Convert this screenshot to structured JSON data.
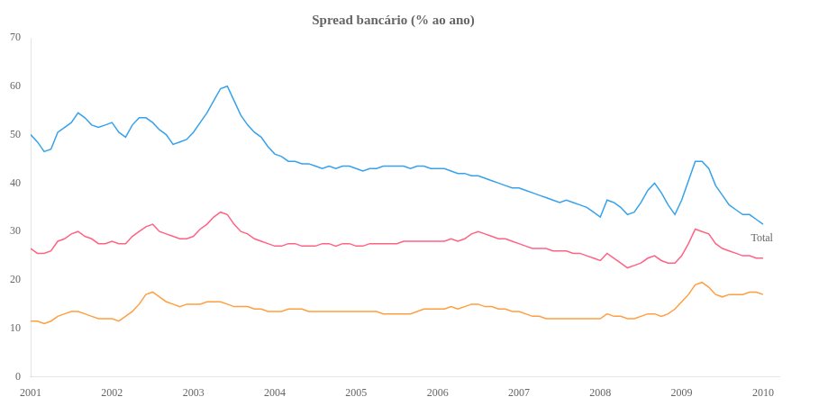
{
  "chart_data": {
    "type": "line",
    "title": "Spread bancário (% ao ano)",
    "x": [
      2001.0,
      2001.0833333333333,
      2001.1666666666667,
      2001.25,
      2001.3333333333333,
      2001.4166666666667,
      2001.5,
      2001.5833333333333,
      2001.6666666666667,
      2001.75,
      2001.8333333333333,
      2001.9166666666667,
      2002.0,
      2002.0833333333333,
      2002.1666666666667,
      2002.25,
      2002.3333333333333,
      2002.4166666666667,
      2002.5,
      2002.5833333333333,
      2002.6666666666667,
      2002.75,
      2002.8333333333333,
      2002.9166666666667,
      2003.0,
      2003.0833333333333,
      2003.1666666666667,
      2003.25,
      2003.3333333333333,
      2003.4166666666667,
      2003.5,
      2003.5833333333333,
      2003.6666666666667,
      2003.75,
      2003.8333333333333,
      2003.9166666666667,
      2004.0,
      2004.0833333333333,
      2004.1666666666667,
      2004.25,
      2004.3333333333333,
      2004.4166666666667,
      2004.5,
      2004.5833333333333,
      2004.6666666666667,
      2004.75,
      2004.8333333333333,
      2004.9166666666667,
      2005.0,
      2005.0833333333333,
      2005.1666666666667,
      2005.25,
      2005.3333333333333,
      2005.4166666666667,
      2005.5,
      2005.5833333333333,
      2005.6666666666667,
      2005.75,
      2005.8333333333333,
      2005.9166666666667,
      2006.0,
      2006.0833333333333,
      2006.1666666666667,
      2006.25,
      2006.3333333333333,
      2006.4166666666667,
      2006.5,
      2006.5833333333333,
      2006.6666666666667,
      2006.75,
      2006.8333333333333,
      2006.9166666666667,
      2007.0,
      2007.0833333333333,
      2007.1666666666667,
      2007.25,
      2007.3333333333333,
      2007.4166666666667,
      2007.5,
      2007.5833333333333,
      2007.6666666666667,
      2007.75,
      2007.8333333333333,
      2007.9166666666667,
      2008.0,
      2008.0833333333333,
      2008.1666666666667,
      2008.25,
      2008.3333333333333,
      2008.4166666666667,
      2008.5,
      2008.5833333333333,
      2008.6666666666667,
      2008.75,
      2008.8333333333333,
      2008.9166666666667,
      2009.0,
      2009.0833333333333,
      2009.1666666666667,
      2009.25,
      2009.3333333333333,
      2009.4166666666667,
      2009.5,
      2009.5833333333333,
      2009.6666666666667,
      2009.75,
      2009.8333333333333,
      2009.9166666666667,
      2010.0
    ],
    "series": [
      {
        "values": [
          50.0,
          48.5,
          46.5,
          47.0,
          50.5,
          51.5,
          52.5,
          54.5,
          53.5,
          52.0,
          51.5,
          52.0,
          52.5,
          50.5,
          49.5,
          52.0,
          53.5,
          53.5,
          52.5,
          51.0,
          50.0,
          48.0,
          48.5,
          49.0,
          50.5,
          52.5,
          54.5,
          57.0,
          59.5,
          60.0,
          57.0,
          54.0,
          52.0,
          50.5,
          49.5,
          47.5,
          46.0,
          45.5,
          44.5,
          44.5,
          44.0,
          44.0,
          43.5,
          43.0,
          43.5,
          43.0,
          43.5,
          43.5,
          43.0,
          42.5,
          43.0,
          43.0,
          43.5,
          43.5,
          43.5,
          43.5,
          43.0,
          43.5,
          43.5,
          43.0,
          43.0,
          43.0,
          42.5,
          42.0,
          42.0,
          41.5,
          41.5,
          41.0,
          40.5,
          40.0,
          39.5,
          39.0,
          39.0,
          38.5,
          38.0,
          37.5,
          37.0,
          36.5,
          36.0,
          36.5,
          36.0,
          35.5,
          35.0,
          34.0,
          33.0,
          36.5,
          36.0,
          35.0,
          33.5,
          34.0,
          36.0,
          38.5,
          40.0,
          38.0,
          35.5,
          33.5,
          36.5,
          40.5,
          44.5,
          44.5,
          43.0,
          39.5,
          37.5,
          35.5,
          34.5,
          33.5,
          33.5,
          32.5,
          31.5
        ]
      },
      {
        "values": [
          26.5,
          25.5,
          25.5,
          26.0,
          28.0,
          28.5,
          29.5,
          30.0,
          29.0,
          28.5,
          27.5,
          27.5,
          28.0,
          27.5,
          27.5,
          29.0,
          30.0,
          31.0,
          31.5,
          30.0,
          29.5,
          29.0,
          28.5,
          28.5,
          29.0,
          30.5,
          31.5,
          33.0,
          34.0,
          33.5,
          31.5,
          30.0,
          29.5,
          28.5,
          28.0,
          27.5,
          27.0,
          27.0,
          27.5,
          27.5,
          27.0,
          27.0,
          27.0,
          27.5,
          27.5,
          27.0,
          27.5,
          27.5,
          27.0,
          27.0,
          27.5,
          27.5,
          27.5,
          27.5,
          27.5,
          28.0,
          28.0,
          28.0,
          28.0,
          28.0,
          28.0,
          28.0,
          28.5,
          28.0,
          28.5,
          29.5,
          30.0,
          29.5,
          29.0,
          28.5,
          28.5,
          28.0,
          27.5,
          27.0,
          26.5,
          26.5,
          26.5,
          26.0,
          26.0,
          26.0,
          25.5,
          25.5,
          25.0,
          24.5,
          24.0,
          25.5,
          24.5,
          23.5,
          22.5,
          23.0,
          23.5,
          24.5,
          25.0,
          24.0,
          23.5,
          23.5,
          25.0,
          27.5,
          30.5,
          30.0,
          29.5,
          27.5,
          26.5,
          26.0,
          25.5,
          25.0,
          25.0,
          24.5,
          24.5
        ]
      },
      {
        "values": [
          11.5,
          11.5,
          11.0,
          11.5,
          12.5,
          13.0,
          13.5,
          13.5,
          13.0,
          12.5,
          12.0,
          12.0,
          12.0,
          11.5,
          12.5,
          13.5,
          15.0,
          17.0,
          17.5,
          16.5,
          15.5,
          15.0,
          14.5,
          15.0,
          15.0,
          15.0,
          15.5,
          15.5,
          15.5,
          15.0,
          14.5,
          14.5,
          14.5,
          14.0,
          14.0,
          13.5,
          13.5,
          13.5,
          14.0,
          14.0,
          14.0,
          13.5,
          13.5,
          13.5,
          13.5,
          13.5,
          13.5,
          13.5,
          13.5,
          13.5,
          13.5,
          13.5,
          13.0,
          13.0,
          13.0,
          13.0,
          13.0,
          13.5,
          14.0,
          14.0,
          14.0,
          14.0,
          14.5,
          14.0,
          14.5,
          15.0,
          15.0,
          14.5,
          14.5,
          14.0,
          14.0,
          13.5,
          13.5,
          13.0,
          12.5,
          12.5,
          12.0,
          12.0,
          12.0,
          12.0,
          12.0,
          12.0,
          12.0,
          12.0,
          12.0,
          13.0,
          12.5,
          12.5,
          12.0,
          12.0,
          12.5,
          13.0,
          13.0,
          12.5,
          13.0,
          14.0,
          15.5,
          17.0,
          19.0,
          19.5,
          18.5,
          17.0,
          16.5,
          17.0,
          17.0,
          17.0,
          17.5,
          17.5,
          17.0
        ]
      }
    ],
    "xlim": [
      2001.0,
      2010.2
    ],
    "xticks": [
      2001,
      2002,
      2003,
      2004,
      2005,
      2006,
      2007,
      2008,
      2009,
      2010
    ],
    "ylim": [
      0,
      70
    ],
    "yticks": [
      0,
      10,
      20,
      30,
      40,
      50,
      60,
      70
    ],
    "grid": false,
    "annotations": [
      {
        "text": "Total",
        "x": 2009.85,
        "y": 28.5
      }
    ]
  }
}
